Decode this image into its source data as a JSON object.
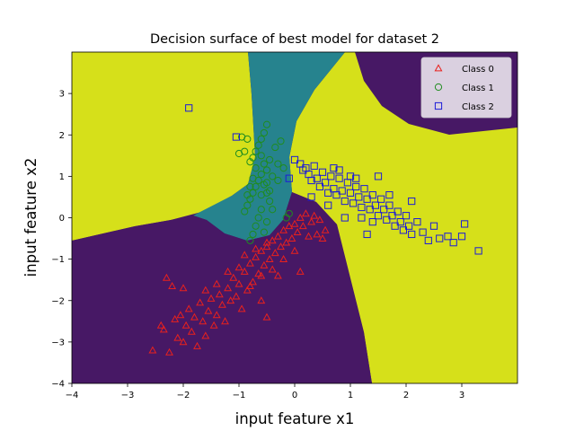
{
  "chart_data": {
    "type": "scatter",
    "title": "Decision surface of best model for dataset 2",
    "xlabel": "input feature x1",
    "ylabel": "input feature x2",
    "xlim": [
      -4,
      4
    ],
    "ylim": [
      -4,
      4
    ],
    "xticks": [
      -4,
      -3,
      -2,
      -1,
      0,
      1,
      2,
      3
    ],
    "yticks": [
      -4,
      -3,
      -2,
      -1,
      0,
      1,
      2,
      3
    ],
    "grid": false,
    "legend_position": "top-right",
    "background_regions": [
      {
        "class": "Class 0",
        "color": "#471865"
      },
      {
        "class": "Class 1",
        "color": "#26838e"
      },
      {
        "class": "Class 2",
        "color": "#d6e01a"
      }
    ],
    "series": [
      {
        "name": "Class 0",
        "marker": "triangle",
        "color": "#e8211d",
        "points": [
          [
            -2.55,
            -3.2
          ],
          [
            -2.4,
            -2.6
          ],
          [
            -2.35,
            -2.7
          ],
          [
            -2.25,
            -3.25
          ],
          [
            -2.15,
            -2.45
          ],
          [
            -2.1,
            -2.9
          ],
          [
            -2.05,
            -2.35
          ],
          [
            -2.0,
            -3.0
          ],
          [
            -1.95,
            -2.6
          ],
          [
            -1.9,
            -2.2
          ],
          [
            -1.85,
            -2.75
          ],
          [
            -1.8,
            -2.4
          ],
          [
            -1.75,
            -3.1
          ],
          [
            -1.7,
            -2.05
          ],
          [
            -1.65,
            -2.5
          ],
          [
            -1.6,
            -2.85
          ],
          [
            -1.55,
            -2.25
          ],
          [
            -1.5,
            -1.95
          ],
          [
            -1.45,
            -2.6
          ],
          [
            -1.4,
            -2.35
          ],
          [
            -1.35,
            -1.85
          ],
          [
            -1.3,
            -2.1
          ],
          [
            -1.25,
            -2.5
          ],
          [
            -1.2,
            -1.7
          ],
          [
            -1.15,
            -2.0
          ],
          [
            -1.1,
            -1.45
          ],
          [
            -1.05,
            -1.9
          ],
          [
            -1.0,
            -1.6
          ],
          [
            -0.95,
            -2.2
          ],
          [
            -0.9,
            -1.3
          ],
          [
            -0.85,
            -1.75
          ],
          [
            -0.8,
            -1.1
          ],
          [
            -0.75,
            -1.55
          ],
          [
            -0.7,
            -0.95
          ],
          [
            -0.65,
            -1.35
          ],
          [
            -0.6,
            -0.8
          ],
          [
            -0.55,
            -1.15
          ],
          [
            -0.5,
            -0.7
          ],
          [
            -0.45,
            -1.0
          ],
          [
            -0.4,
            -0.55
          ],
          [
            -0.35,
            -0.85
          ],
          [
            -0.3,
            -0.45
          ],
          [
            -0.25,
            -0.7
          ],
          [
            -0.2,
            -0.3
          ],
          [
            -0.15,
            -0.6
          ],
          [
            -0.1,
            -0.2
          ],
          [
            -0.05,
            -0.5
          ],
          [
            0.0,
            -0.15
          ],
          [
            0.05,
            -0.35
          ],
          [
            0.1,
            0.0
          ],
          [
            0.15,
            -0.2
          ],
          [
            0.2,
            0.1
          ],
          [
            0.25,
            -0.45
          ],
          [
            0.3,
            -0.1
          ],
          [
            0.35,
            0.05
          ],
          [
            0.4,
            -0.4
          ],
          [
            0.45,
            -0.05
          ],
          [
            0.5,
            -0.5
          ],
          [
            0.55,
            -0.3
          ],
          [
            -1.2,
            -1.3
          ],
          [
            -1.0,
            -1.2
          ],
          [
            -0.8,
            -1.65
          ],
          [
            -0.6,
            -1.4
          ],
          [
            -0.4,
            -1.25
          ],
          [
            -0.2,
            -1.0
          ],
          [
            0.0,
            -0.8
          ],
          [
            -0.9,
            -0.9
          ],
          [
            -0.7,
            -0.75
          ],
          [
            -0.5,
            -0.6
          ],
          [
            -0.3,
            -1.4
          ],
          [
            -1.4,
            -1.6
          ],
          [
            -1.6,
            -1.75
          ],
          [
            -0.6,
            -2.0
          ],
          [
            -0.5,
            -2.4
          ],
          [
            -2.0,
            -1.7
          ],
          [
            -2.2,
            -1.65
          ],
          [
            -2.3,
            -1.45
          ],
          [
            0.1,
            -1.3
          ]
        ]
      },
      {
        "name": "Class 1",
        "marker": "circle",
        "color": "#1f8c1f",
        "points": [
          [
            -0.5,
            2.25
          ],
          [
            -0.55,
            2.05
          ],
          [
            -0.6,
            1.9
          ],
          [
            -0.65,
            1.75
          ],
          [
            -0.7,
            1.6
          ],
          [
            -0.75,
            1.45
          ],
          [
            -0.8,
            1.35
          ],
          [
            -0.85,
            1.9
          ],
          [
            -0.9,
            1.6
          ],
          [
            -0.6,
            1.5
          ],
          [
            -0.55,
            1.3
          ],
          [
            -0.5,
            1.15
          ],
          [
            -0.45,
            1.4
          ],
          [
            -0.4,
            1.0
          ],
          [
            -0.6,
            1.05
          ],
          [
            -0.65,
            0.9
          ],
          [
            -0.7,
            0.75
          ],
          [
            -0.75,
            0.6
          ],
          [
            -0.8,
            0.45
          ],
          [
            -0.85,
            0.3
          ],
          [
            -0.9,
            0.15
          ],
          [
            -0.55,
            0.8
          ],
          [
            -0.5,
            0.6
          ],
          [
            -0.45,
            0.4
          ],
          [
            -0.6,
            0.2
          ],
          [
            -0.65,
            0.0
          ],
          [
            -0.7,
            -0.2
          ],
          [
            -0.75,
            -0.4
          ],
          [
            -0.8,
            -0.55
          ],
          [
            -0.5,
            -0.1
          ],
          [
            -0.55,
            -0.35
          ],
          [
            -0.4,
            0.2
          ],
          [
            -0.35,
            1.7
          ],
          [
            -0.3,
            1.3
          ],
          [
            -0.3,
            0.9
          ],
          [
            -0.2,
            1.2
          ],
          [
            -0.15,
            0.0
          ],
          [
            -0.1,
            0.1
          ],
          [
            -1.0,
            1.55
          ],
          [
            -0.95,
            1.95
          ],
          [
            -0.25,
            1.85
          ],
          [
            -0.7,
            1.2
          ],
          [
            -0.75,
            0.95
          ],
          [
            -0.8,
            0.75
          ],
          [
            -0.85,
            0.55
          ],
          [
            -0.5,
            0.85
          ],
          [
            -0.45,
            0.65
          ],
          [
            -0.6,
            0.55
          ]
        ]
      },
      {
        "name": "Class 2",
        "marker": "square",
        "color": "#1c1cd8",
        "points": [
          [
            -1.9,
            2.65
          ],
          [
            -1.05,
            1.95
          ],
          [
            0.0,
            1.4
          ],
          [
            0.1,
            1.3
          ],
          [
            0.15,
            1.15
          ],
          [
            0.2,
            1.2
          ],
          [
            0.25,
            1.05
          ],
          [
            0.3,
            0.9
          ],
          [
            0.35,
            1.25
          ],
          [
            0.4,
            0.95
          ],
          [
            0.45,
            0.75
          ],
          [
            0.5,
            1.1
          ],
          [
            0.55,
            0.85
          ],
          [
            0.6,
            0.6
          ],
          [
            0.65,
            1.0
          ],
          [
            0.7,
            0.7
          ],
          [
            0.75,
            0.55
          ],
          [
            0.8,
            0.95
          ],
          [
            0.85,
            0.65
          ],
          [
            0.9,
            0.4
          ],
          [
            0.95,
            0.85
          ],
          [
            1.0,
            0.6
          ],
          [
            1.05,
            0.35
          ],
          [
            1.1,
            0.75
          ],
          [
            1.15,
            0.5
          ],
          [
            1.2,
            0.25
          ],
          [
            1.25,
            0.7
          ],
          [
            1.3,
            0.45
          ],
          [
            1.35,
            0.2
          ],
          [
            1.4,
            0.55
          ],
          [
            1.45,
            0.3
          ],
          [
            1.5,
            0.05
          ],
          [
            1.55,
            0.45
          ],
          [
            1.6,
            0.2
          ],
          [
            1.65,
            -0.05
          ],
          [
            1.7,
            0.3
          ],
          [
            1.75,
            0.05
          ],
          [
            1.8,
            -0.2
          ],
          [
            1.85,
            0.15
          ],
          [
            1.9,
            -0.1
          ],
          [
            1.95,
            -0.3
          ],
          [
            2.0,
            0.05
          ],
          [
            2.05,
            -0.2
          ],
          [
            2.1,
            -0.4
          ],
          [
            2.2,
            -0.1
          ],
          [
            2.3,
            -0.35
          ],
          [
            2.4,
            -0.55
          ],
          [
            2.5,
            -0.2
          ],
          [
            2.6,
            -0.5
          ],
          [
            2.75,
            -0.45
          ],
          [
            2.85,
            -0.6
          ],
          [
            3.0,
            -0.45
          ],
          [
            3.05,
            -0.15
          ],
          [
            3.3,
            -0.8
          ],
          [
            1.5,
            1.0
          ],
          [
            1.0,
            1.0
          ],
          [
            0.8,
            1.15
          ],
          [
            1.2,
            0.0
          ],
          [
            1.4,
            -0.1
          ],
          [
            1.3,
            -0.4
          ],
          [
            0.9,
            0.0
          ],
          [
            0.6,
            0.3
          ],
          [
            0.3,
            0.5
          ],
          [
            -0.1,
            0.95
          ],
          [
            1.7,
            0.55
          ],
          [
            2.1,
            0.4
          ],
          [
            1.1,
            0.95
          ],
          [
            0.7,
            1.2
          ]
        ]
      }
    ]
  }
}
